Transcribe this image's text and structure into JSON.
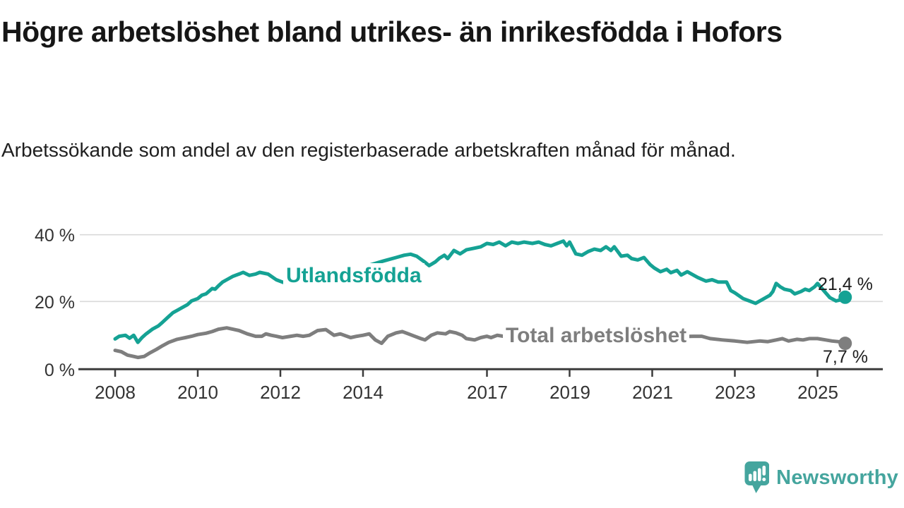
{
  "header": {
    "title": "Högre arbetslöshet bland utrikes- än inrikesfödda i Hofors",
    "subtitle": "Arbetssökande som andel av den registerbaserade arbetskraften månad för månad."
  },
  "chart_data": {
    "type": "line",
    "title": "Högre arbetslöshet bland utrikes- än inrikesfödda i Hofors",
    "subtitle": "Arbetssökande som andel av den registerbaserade arbetskraften månad för månad.",
    "xlabel": "",
    "ylabel": "",
    "xlim": [
      2007.9,
      2026.0
    ],
    "ylim": [
      0,
      43
    ],
    "grid": "horizontal",
    "legend_position": "inline-labels-on-lines",
    "x_tick_years": [
      2008,
      2010,
      2012,
      2014,
      2017,
      2019,
      2021,
      2023,
      2025
    ],
    "x_tick_labels": [
      "2008",
      "2010",
      "2012",
      "2014",
      "2017",
      "2019",
      "2021",
      "2023",
      "2025"
    ],
    "y_tick_values": [
      40,
      20,
      0
    ],
    "y_tick_labels": [
      "40 %",
      "20 %",
      "0 %"
    ],
    "series": [
      {
        "name": "Utlandsfödda",
        "color": "#15a294",
        "end_value": 21.4,
        "end_label": "21,4 %",
        "points": [
          [
            2008.0,
            9.0
          ],
          [
            2008.1,
            9.8
          ],
          [
            2008.25,
            10.1
          ],
          [
            2008.35,
            9.2
          ],
          [
            2008.45,
            10.1
          ],
          [
            2008.55,
            8.0
          ],
          [
            2008.65,
            9.4
          ],
          [
            2008.75,
            10.5
          ],
          [
            2008.9,
            11.9
          ],
          [
            2009.05,
            12.9
          ],
          [
            2009.15,
            14.0
          ],
          [
            2009.3,
            15.7
          ],
          [
            2009.4,
            16.8
          ],
          [
            2009.5,
            17.5
          ],
          [
            2009.65,
            18.5
          ],
          [
            2009.75,
            19.2
          ],
          [
            2009.85,
            20.3
          ],
          [
            2010.0,
            21.0
          ],
          [
            2010.1,
            22.0
          ],
          [
            2010.2,
            22.4
          ],
          [
            2010.35,
            24.0
          ],
          [
            2010.42,
            23.8
          ],
          [
            2010.5,
            24.8
          ],
          [
            2010.6,
            25.9
          ],
          [
            2010.7,
            26.6
          ],
          [
            2010.85,
            27.6
          ],
          [
            2011.0,
            28.3
          ],
          [
            2011.1,
            28.8
          ],
          [
            2011.25,
            27.9
          ],
          [
            2011.4,
            28.3
          ],
          [
            2011.5,
            28.8
          ],
          [
            2011.7,
            28.3
          ],
          [
            2011.9,
            26.6
          ],
          [
            2012.05,
            25.9
          ],
          [
            2012.25,
            25.2
          ],
          [
            2012.5,
            26.0
          ],
          [
            2012.75,
            26.7
          ],
          [
            2013.0,
            27.3
          ],
          [
            2013.25,
            28.0
          ],
          [
            2013.5,
            28.8
          ],
          [
            2013.75,
            29.6
          ],
          [
            2014.0,
            30.4
          ],
          [
            2014.25,
            31.3
          ],
          [
            2014.5,
            32.2
          ],
          [
            2014.8,
            33.2
          ],
          [
            2015.0,
            33.9
          ],
          [
            2015.15,
            34.2
          ],
          [
            2015.3,
            33.6
          ],
          [
            2015.5,
            31.8
          ],
          [
            2015.6,
            30.8
          ],
          [
            2015.75,
            31.9
          ],
          [
            2015.85,
            33.0
          ],
          [
            2015.97,
            33.9
          ],
          [
            2016.05,
            32.9
          ],
          [
            2016.2,
            35.3
          ],
          [
            2016.35,
            34.3
          ],
          [
            2016.5,
            35.5
          ],
          [
            2016.7,
            36.0
          ],
          [
            2016.85,
            36.4
          ],
          [
            2017.0,
            37.4
          ],
          [
            2017.15,
            37.1
          ],
          [
            2017.3,
            37.8
          ],
          [
            2017.45,
            36.7
          ],
          [
            2017.6,
            37.8
          ],
          [
            2017.75,
            37.4
          ],
          [
            2017.9,
            37.8
          ],
          [
            2018.1,
            37.4
          ],
          [
            2018.25,
            37.8
          ],
          [
            2018.4,
            37.1
          ],
          [
            2018.55,
            36.7
          ],
          [
            2018.7,
            37.4
          ],
          [
            2018.85,
            38.1
          ],
          [
            2018.93,
            36.7
          ],
          [
            2019.0,
            37.8
          ],
          [
            2019.15,
            34.3
          ],
          [
            2019.3,
            33.9
          ],
          [
            2019.45,
            35.0
          ],
          [
            2019.6,
            35.7
          ],
          [
            2019.75,
            35.3
          ],
          [
            2019.88,
            36.4
          ],
          [
            2020.0,
            35.3
          ],
          [
            2020.08,
            36.4
          ],
          [
            2020.25,
            33.6
          ],
          [
            2020.4,
            33.9
          ],
          [
            2020.5,
            32.9
          ],
          [
            2020.65,
            32.5
          ],
          [
            2020.8,
            33.2
          ],
          [
            2020.95,
            31.1
          ],
          [
            2021.05,
            30.1
          ],
          [
            2021.2,
            29.0
          ],
          [
            2021.35,
            29.7
          ],
          [
            2021.45,
            28.7
          ],
          [
            2021.6,
            29.4
          ],
          [
            2021.7,
            28.0
          ],
          [
            2021.85,
            29.0
          ],
          [
            2022.1,
            27.3
          ],
          [
            2022.3,
            26.2
          ],
          [
            2022.45,
            26.6
          ],
          [
            2022.6,
            25.9
          ],
          [
            2022.8,
            25.9
          ],
          [
            2022.9,
            23.4
          ],
          [
            2023.0,
            22.7
          ],
          [
            2023.2,
            21.0
          ],
          [
            2023.35,
            20.3
          ],
          [
            2023.5,
            19.6
          ],
          [
            2023.65,
            20.6
          ],
          [
            2023.85,
            22.0
          ],
          [
            2023.92,
            23.1
          ],
          [
            2024.0,
            25.5
          ],
          [
            2024.1,
            24.5
          ],
          [
            2024.2,
            23.8
          ],
          [
            2024.35,
            23.4
          ],
          [
            2024.45,
            22.4
          ],
          [
            2024.6,
            23.1
          ],
          [
            2024.7,
            23.8
          ],
          [
            2024.8,
            23.4
          ],
          [
            2024.93,
            24.5
          ],
          [
            2025.0,
            25.5
          ],
          [
            2025.15,
            23.4
          ],
          [
            2025.3,
            21.3
          ],
          [
            2025.45,
            20.3
          ],
          [
            2025.55,
            20.6
          ],
          [
            2025.67,
            21.4
          ]
        ]
      },
      {
        "name": "Total arbetslöshet",
        "color": "#7e7e7e",
        "end_value": 7.7,
        "end_label": "7,7 %",
        "points": [
          [
            2008.0,
            5.6
          ],
          [
            2008.15,
            5.2
          ],
          [
            2008.3,
            4.2
          ],
          [
            2008.45,
            3.8
          ],
          [
            2008.55,
            3.5
          ],
          [
            2008.7,
            3.8
          ],
          [
            2008.85,
            4.9
          ],
          [
            2009.0,
            5.9
          ],
          [
            2009.15,
            7.0
          ],
          [
            2009.3,
            8.0
          ],
          [
            2009.5,
            8.9
          ],
          [
            2009.7,
            9.4
          ],
          [
            2009.85,
            9.8
          ],
          [
            2010.0,
            10.3
          ],
          [
            2010.2,
            10.7
          ],
          [
            2010.35,
            11.2
          ],
          [
            2010.5,
            11.9
          ],
          [
            2010.7,
            12.3
          ],
          [
            2010.85,
            11.9
          ],
          [
            2011.0,
            11.5
          ],
          [
            2011.2,
            10.5
          ],
          [
            2011.4,
            9.8
          ],
          [
            2011.55,
            9.8
          ],
          [
            2011.65,
            10.5
          ],
          [
            2011.78,
            10.1
          ],
          [
            2011.9,
            9.8
          ],
          [
            2012.05,
            9.4
          ],
          [
            2012.25,
            9.8
          ],
          [
            2012.4,
            10.1
          ],
          [
            2012.55,
            9.8
          ],
          [
            2012.7,
            10.1
          ],
          [
            2012.9,
            11.5
          ],
          [
            2013.1,
            11.8
          ],
          [
            2013.3,
            10.1
          ],
          [
            2013.45,
            10.5
          ],
          [
            2013.7,
            9.4
          ],
          [
            2013.85,
            9.8
          ],
          [
            2014.0,
            10.1
          ],
          [
            2014.15,
            10.5
          ],
          [
            2014.3,
            8.7
          ],
          [
            2014.45,
            7.7
          ],
          [
            2014.6,
            9.8
          ],
          [
            2014.8,
            10.8
          ],
          [
            2014.95,
            11.2
          ],
          [
            2015.1,
            10.5
          ],
          [
            2015.25,
            9.8
          ],
          [
            2015.4,
            9.1
          ],
          [
            2015.5,
            8.7
          ],
          [
            2015.65,
            10.1
          ],
          [
            2015.8,
            10.8
          ],
          [
            2016.0,
            10.5
          ],
          [
            2016.1,
            11.2
          ],
          [
            2016.25,
            10.8
          ],
          [
            2016.4,
            10.1
          ],
          [
            2016.5,
            9.1
          ],
          [
            2016.7,
            8.7
          ],
          [
            2016.85,
            9.4
          ],
          [
            2017.0,
            9.8
          ],
          [
            2017.1,
            9.4
          ],
          [
            2017.25,
            10.1
          ],
          [
            2017.4,
            9.8
          ],
          [
            2017.7,
            9.5
          ],
          [
            2018.0,
            9.3
          ],
          [
            2018.4,
            9.7
          ],
          [
            2018.8,
            9.4
          ],
          [
            2019.2,
            9.6
          ],
          [
            2019.6,
            9.4
          ],
          [
            2020.0,
            9.7
          ],
          [
            2020.4,
            9.4
          ],
          [
            2020.8,
            9.6
          ],
          [
            2021.2,
            9.4
          ],
          [
            2021.6,
            9.7
          ],
          [
            2022.0,
            9.8
          ],
          [
            2022.2,
            9.8
          ],
          [
            2022.4,
            9.1
          ],
          [
            2022.7,
            8.7
          ],
          [
            2023.0,
            8.4
          ],
          [
            2023.3,
            8.0
          ],
          [
            2023.6,
            8.4
          ],
          [
            2023.8,
            8.2
          ],
          [
            2024.0,
            8.7
          ],
          [
            2024.15,
            9.1
          ],
          [
            2024.3,
            8.4
          ],
          [
            2024.5,
            8.9
          ],
          [
            2024.65,
            8.7
          ],
          [
            2024.8,
            9.1
          ],
          [
            2025.0,
            9.1
          ],
          [
            2025.2,
            8.7
          ],
          [
            2025.35,
            8.4
          ],
          [
            2025.5,
            8.2
          ],
          [
            2025.67,
            7.7
          ]
        ]
      }
    ]
  },
  "annotations": {
    "utlandsfodda_label": "Utlandsfödda",
    "total_label": "Total arbetslöshet",
    "teal_end_label": "21,4 %",
    "gray_end_label": "7,7 %"
  },
  "colors": {
    "teal_line": "#15a294",
    "gray_line": "#7e7e7e",
    "gridline": "#d9d9d9",
    "axis": "#3c3c3c",
    "text_dark": "#1e1e1e",
    "logo_teal": "#45a59e"
  },
  "footer": {
    "brand": "Newsworthy"
  }
}
